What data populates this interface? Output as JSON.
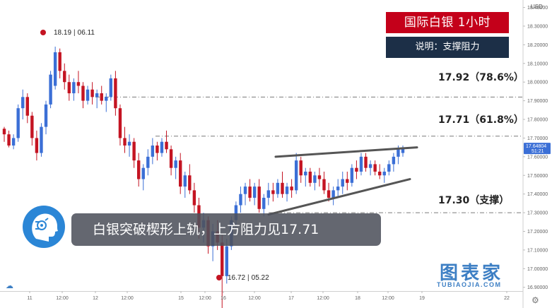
{
  "header": {
    "title": "国际白银 1小时",
    "subtitle": "说明：支撑阻力"
  },
  "levels": [
    {
      "value": 17.92,
      "label": "17.92（78.6%）"
    },
    {
      "value": 17.71,
      "label": "17.71（61.8%）"
    },
    {
      "value": 17.3,
      "label": "17.30（支撑）"
    }
  ],
  "markers": {
    "high": {
      "price": "18.19",
      "date": "06.11",
      "value": 18.19
    },
    "low": {
      "price": "16.72",
      "date": "05.22",
      "value": 16.72
    }
  },
  "banner": {
    "text": "白银突破楔形上轨，上方阻力见17.71"
  },
  "watermark": {
    "title": "图表家",
    "subtitle": "TUBIAOJIA.COM"
  },
  "chart_data": {
    "type": "candlestick",
    "currency_label": "USD",
    "ylim": [
      16.88,
      18.44
    ],
    "y_ticks": [
      "18.40000",
      "18.30000",
      "18.20000",
      "18.10000",
      "18.00000",
      "17.90000",
      "17.80000",
      "17.70000",
      "17.60000",
      "17.50000",
      "17.40000",
      "17.30000",
      "17.20000",
      "17.10000",
      "17.00000",
      "16.90000"
    ],
    "x_ticks": [
      "11",
      "12:00",
      "12",
      "12:00",
      "15",
      "12:00",
      "16",
      "12:00",
      "17",
      "12:00",
      "18",
      "12:00",
      "19",
      "22"
    ],
    "last_price": {
      "value": 17.648,
      "label": "17.64804",
      "countdown": "51:21"
    },
    "up_color": "#3b6fd6",
    "down_color": "#c41422",
    "wedge": {
      "upper": [
        [
          0.0,
          17.6
        ],
        [
          1.0,
          17.65
        ]
      ],
      "lower": [
        [
          0.0,
          17.29
        ],
        [
          1.0,
          17.48
        ]
      ]
    },
    "candles": [
      [
        17.75,
        17.76,
        17.68,
        17.72
      ],
      [
        17.72,
        17.74,
        17.65,
        17.66
      ],
      [
        17.66,
        17.72,
        17.64,
        17.7
      ],
      [
        17.7,
        17.88,
        17.68,
        17.86
      ],
      [
        17.86,
        17.96,
        17.8,
        17.92
      ],
      [
        17.92,
        17.94,
        17.78,
        17.82
      ],
      [
        17.82,
        17.84,
        17.66,
        17.7
      ],
      [
        17.7,
        17.74,
        17.58,
        17.62
      ],
      [
        17.62,
        17.78,
        17.6,
        17.76
      ],
      [
        17.76,
        17.9,
        17.72,
        17.88
      ],
      [
        17.88,
        18.06,
        17.86,
        18.04
      ],
      [
        17.98,
        18.19,
        17.96,
        18.16
      ],
      [
        18.16,
        18.18,
        18.02,
        18.06
      ],
      [
        18.06,
        18.1,
        17.96,
        18.0
      ],
      [
        18.0,
        18.04,
        17.9,
        17.94
      ],
      [
        17.94,
        18.02,
        17.9,
        18.0
      ],
      [
        18.0,
        18.06,
        17.94,
        17.98
      ],
      [
        17.98,
        18.0,
        17.86,
        17.9
      ],
      [
        17.9,
        17.98,
        17.88,
        17.96
      ],
      [
        17.96,
        18.0,
        17.88,
        17.92
      ],
      [
        17.92,
        17.96,
        17.86,
        17.94
      ],
      [
        17.94,
        17.98,
        17.88,
        17.9
      ],
      [
        17.9,
        17.94,
        17.84,
        17.92
      ],
      [
        17.92,
        18.04,
        17.9,
        18.02
      ],
      [
        18.02,
        18.06,
        17.82,
        17.86
      ],
      [
        17.86,
        17.88,
        17.66,
        17.7
      ],
      [
        17.7,
        17.76,
        17.62,
        17.66
      ],
      [
        17.66,
        17.72,
        17.6,
        17.68
      ],
      [
        17.68,
        17.7,
        17.54,
        17.58
      ],
      [
        17.58,
        17.62,
        17.44,
        17.48
      ],
      [
        17.48,
        17.56,
        17.42,
        17.54
      ],
      [
        17.54,
        17.64,
        17.5,
        17.6
      ],
      [
        17.6,
        17.7,
        17.56,
        17.66
      ],
      [
        17.66,
        17.68,
        17.58,
        17.62
      ],
      [
        17.62,
        17.7,
        17.6,
        17.68
      ],
      [
        17.68,
        17.74,
        17.62,
        17.64
      ],
      [
        17.64,
        17.66,
        17.5,
        17.54
      ],
      [
        17.54,
        17.6,
        17.48,
        17.58
      ],
      [
        17.58,
        17.62,
        17.4,
        17.44
      ],
      [
        17.44,
        17.52,
        17.38,
        17.5
      ],
      [
        17.5,
        17.56,
        17.4,
        17.42
      ],
      [
        17.42,
        17.46,
        17.3,
        17.34
      ],
      [
        17.34,
        17.38,
        17.16,
        17.22
      ],
      [
        17.22,
        17.3,
        17.14,
        17.26
      ],
      [
        17.26,
        17.28,
        17.08,
        17.12
      ],
      [
        17.12,
        17.24,
        17.04,
        17.2
      ],
      [
        17.2,
        17.26,
        17.1,
        17.14
      ],
      [
        17.14,
        17.18,
        16.72,
        16.96
      ],
      [
        16.96,
        17.16,
        16.92,
        17.12
      ],
      [
        17.12,
        17.28,
        17.1,
        17.26
      ],
      [
        17.26,
        17.36,
        17.22,
        17.34
      ],
      [
        17.34,
        17.44,
        17.3,
        17.4
      ],
      [
        17.4,
        17.46,
        17.34,
        17.44
      ],
      [
        17.44,
        17.48,
        17.36,
        17.38
      ],
      [
        17.38,
        17.46,
        17.34,
        17.44
      ],
      [
        17.44,
        17.48,
        17.3,
        17.32
      ],
      [
        17.32,
        17.4,
        17.28,
        17.38
      ],
      [
        17.38,
        17.46,
        17.34,
        17.42
      ],
      [
        17.42,
        17.46,
        17.36,
        17.4
      ],
      [
        17.4,
        17.48,
        17.38,
        17.46
      ],
      [
        17.46,
        17.52,
        17.38,
        17.4
      ],
      [
        17.4,
        17.46,
        17.36,
        17.44
      ],
      [
        17.44,
        17.48,
        17.38,
        17.42
      ],
      [
        17.42,
        17.62,
        17.4,
        17.58
      ],
      [
        17.58,
        17.6,
        17.46,
        17.5
      ],
      [
        17.5,
        17.54,
        17.44,
        17.52
      ],
      [
        17.52,
        17.54,
        17.44,
        17.46
      ],
      [
        17.46,
        17.52,
        17.42,
        17.5
      ],
      [
        17.5,
        17.54,
        17.44,
        17.48
      ],
      [
        17.48,
        17.52,
        17.4,
        17.42
      ],
      [
        17.42,
        17.46,
        17.36,
        17.38
      ],
      [
        17.38,
        17.44,
        17.34,
        17.42
      ],
      [
        17.42,
        17.48,
        17.38,
        17.44
      ],
      [
        17.44,
        17.52,
        17.4,
        17.48
      ],
      [
        17.48,
        17.52,
        17.42,
        17.46
      ],
      [
        17.46,
        17.56,
        17.44,
        17.54
      ],
      [
        17.54,
        17.58,
        17.48,
        17.52
      ],
      [
        17.52,
        17.62,
        17.5,
        17.6
      ],
      [
        17.6,
        17.62,
        17.52,
        17.54
      ],
      [
        17.54,
        17.58,
        17.5,
        17.56
      ],
      [
        17.56,
        17.58,
        17.5,
        17.52
      ],
      [
        17.52,
        17.56,
        17.48,
        17.5
      ],
      [
        17.5,
        17.54,
        17.46,
        17.52
      ],
      [
        17.52,
        17.58,
        17.5,
        17.56
      ],
      [
        17.56,
        17.62,
        17.52,
        17.6
      ],
      [
        17.6,
        17.66,
        17.56,
        17.64
      ],
      [
        17.62,
        17.66,
        17.6,
        17.65
      ]
    ]
  }
}
